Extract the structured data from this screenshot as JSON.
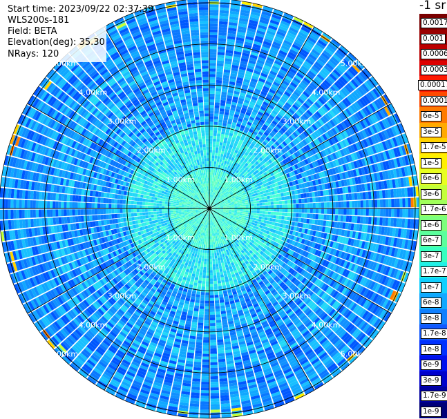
{
  "info": {
    "start_time": "Start time: 2023/09/22 02:37:39",
    "device": "WLS200s-181",
    "field": "Field: BETA",
    "elevation": "Elevation(deg): 35.30",
    "nrays": "NRays: 120"
  },
  "colorbar": {
    "unit": "-1 sr",
    "labels": [
      "0.0017",
      "0.001",
      "0.0006",
      "0.0003",
      "0.00017",
      "0.0001",
      "6e-5",
      "3e-5",
      "1.7e-5",
      "1e-5",
      "6e-6",
      "3e-6",
      "1.7e-6",
      "1e-6",
      "6e-7",
      "3e-7",
      "1.7e-7",
      "1e-7",
      "6e-8",
      "3e-8",
      "1.7e-8",
      "1e-8",
      "6e-9",
      "3e-9",
      "1.7e-9",
      "1e-9"
    ],
    "colors": [
      "#7a0000",
      "#9a0000",
      "#bb0000",
      "#dd0000",
      "#ff1a00",
      "#ff4a00",
      "#ff7a00",
      "#ffaa00",
      "#ffd200",
      "#fff000",
      "#e8ff20",
      "#c4ff3a",
      "#a0ff5a",
      "#7cff7c",
      "#5aff9c",
      "#38ffc0",
      "#20f0e6",
      "#10d0ff",
      "#10a8ff",
      "#1080ff",
      "#1058ff",
      "#0030ff",
      "#0010ee",
      "#0000cc",
      "#0000a0",
      "#000078"
    ]
  },
  "chart_data": {
    "type": "heatmap",
    "projection": "polar-ppi",
    "field": "BETA",
    "nrays": 120,
    "range_rings_km": [
      1,
      2,
      3,
      4,
      5
    ],
    "ring_labels": [
      "1.00km",
      "2.00km",
      "3.00km",
      "4.00km",
      "5.00km"
    ],
    "max_range_km": 5.1,
    "azimuth_lines_deg": [
      0,
      30,
      60,
      90,
      120,
      150,
      180,
      210,
      240,
      270,
      300,
      330
    ],
    "scale": "log",
    "value_range": [
      1e-09,
      0.0017
    ],
    "typical_values": {
      "near_center_under_2km": 1.7e-07,
      "mid_range_2_to_4km": 3e-08,
      "outer_edge_scattered": 1.7e-05
    }
  }
}
